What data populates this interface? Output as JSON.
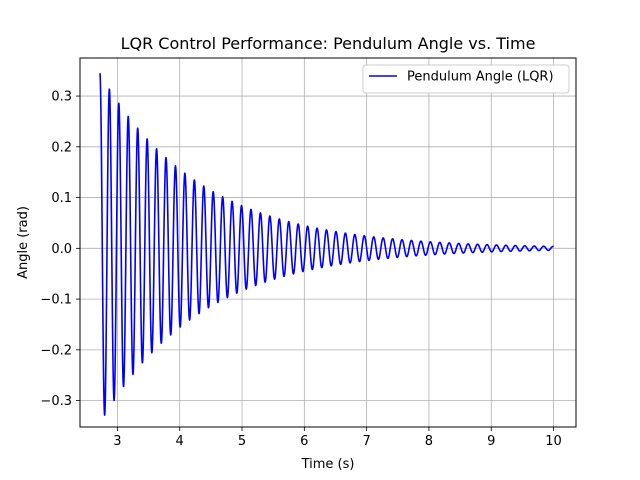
{
  "chart_data": {
    "type": "line",
    "title": "LQR Control Performance: Pendulum Angle vs. Time",
    "xlabel": "Time (s)",
    "ylabel": "Angle (rad)",
    "xlim": [
      2.4,
      10.36
    ],
    "ylim": [
      -0.352,
      0.375
    ],
    "xticks": [
      3,
      4,
      5,
      6,
      7,
      8,
      9,
      10
    ],
    "yticks": [
      -0.3,
      -0.2,
      -0.1,
      0.0,
      0.1,
      0.2,
      0.3
    ],
    "xtick_labels": [
      "3",
      "4",
      "5",
      "6",
      "7",
      "8",
      "9",
      "10"
    ],
    "ytick_labels": [
      "−0.3",
      "−0.2",
      "−0.1",
      "0.0",
      "0.1",
      "0.2",
      "0.3"
    ],
    "grid": true,
    "legend_position": "upper right",
    "series": [
      {
        "name": "Pendulum Angle (LQR)",
        "color": "#0000ff",
        "signal": {
          "t_start": 2.72,
          "t_end": 10.0,
          "amplitude": 0.345,
          "decay_rate": 0.62,
          "frequency_hz": 6.6
        },
        "peaks": [
          {
            "x": 2.72,
            "y": 0.345
          },
          {
            "x": 2.8,
            "y": -0.32
          },
          {
            "x": 2.88,
            "y": 0.3
          },
          {
            "x": 2.96,
            "y": -0.28
          },
          {
            "x": 3.04,
            "y": 0.27
          },
          {
            "x": 3.12,
            "y": -0.25
          },
          {
            "x": 3.35,
            "y": 0.21
          },
          {
            "x": 4.0,
            "y": 0.15
          },
          {
            "x": 5.0,
            "y": 0.08
          },
          {
            "x": 6.0,
            "y": 0.05
          },
          {
            "x": 7.0,
            "y": 0.013
          },
          {
            "x": 8.0,
            "y": 0.007
          },
          {
            "x": 9.0,
            "y": 0.004
          },
          {
            "x": 10.0,
            "y": 0.001
          }
        ]
      }
    ]
  }
}
